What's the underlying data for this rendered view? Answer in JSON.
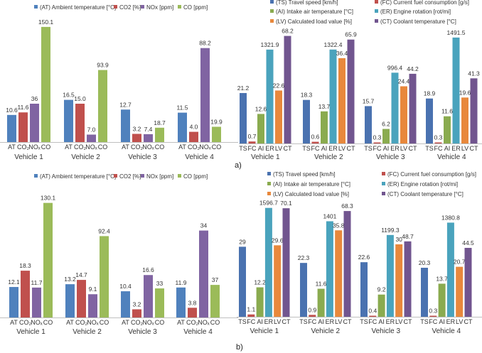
{
  "panel_labels": [
    "a)",
    "b)"
  ],
  "chart_data": [
    {
      "type": "bar",
      "panel": "a) left",
      "categories": [
        "Vehicle 1",
        "Vehicle 2",
        "Vehicle 3",
        "Vehicle 4"
      ],
      "bar_labels": [
        "AT",
        "CO₂",
        "NOₓ",
        "CO"
      ],
      "legend_position": "top",
      "series": [
        {
          "name": "(AT) Ambient temperature [°C]",
          "color": "#4f81bd",
          "values": [
            10.6,
            16.5,
            12.7,
            11.5
          ],
          "labels": [
            "10.6",
            "16.5",
            "12.7",
            "11.5"
          ]
        },
        {
          "name": "CO2 [%]",
          "color": "#c0504d",
          "values": [
            11.6,
            15.0,
            3.2,
            4.0
          ],
          "labels": [
            "11.6",
            "15.0",
            "3.2",
            "4.0"
          ]
        },
        {
          "name": "NOx [ppm]",
          "color": "#8064a2",
          "values": [
            36,
            7.0,
            7.4,
            88.2
          ],
          "labels": [
            "36",
            "7.0",
            "7.4",
            "88.2"
          ]
        },
        {
          "name": "CO [ppm]",
          "color": "#9bbb59",
          "values": [
            150.1,
            93.9,
            18.7,
            19.9
          ],
          "labels": [
            "150.1",
            "93.9",
            "18.7",
            "19.9"
          ]
        }
      ]
    },
    {
      "type": "bar",
      "panel": "a) right",
      "categories": [
        "Vehicle 1",
        "Vehicle 2",
        "Vehicle 3",
        "Vehicle 4"
      ],
      "bar_labels": [
        "TS",
        "FC",
        "AI",
        "ER",
        "LV",
        "CT"
      ],
      "legend_position": "top",
      "series": [
        {
          "name": "(TS) Travel speed [km/h]",
          "color": "#4a72b0",
          "values": [
            21.2,
            18.3,
            15.7,
            18.9
          ],
          "labels": [
            "21.2",
            "18.3",
            "15.7",
            "18.9"
          ]
        },
        {
          "name": "(FC) Current fuel consumption [g/s]",
          "color": "#c0504d",
          "values": [
            0.7,
            0.6,
            0.3,
            0.3
          ],
          "labels": [
            "0.7",
            "0.6",
            "0.3",
            "0.3"
          ]
        },
        {
          "name": "(AI) Intake air temperature [°C]",
          "color": "#8aab4f",
          "values": [
            12.6,
            13.7,
            6.2,
            11.6
          ],
          "labels": [
            "12.6",
            "13.7",
            "6.2",
            "11.6"
          ]
        },
        {
          "name": "(ER) Engine rotation [rot/mi]",
          "color": "#4aa3bd",
          "values": [
            1321.9,
            1322.4,
            996.4,
            1491.5
          ],
          "labels": [
            "1321.9",
            "1322.4",
            "996.4",
            "1491.5"
          ]
        },
        {
          "name": "(LV) Calculated load value [%]",
          "color": "#e8883c",
          "values": [
            22.6,
            36.4,
            24.4,
            19.6
          ],
          "labels": [
            "22.6",
            "36.4",
            "24.4",
            "19.6"
          ]
        },
        {
          "name": "(CT) Coolant temperature [°C]",
          "color": "#71558f",
          "values": [
            68.2,
            65.9,
            44.2,
            41.3
          ],
          "labels": [
            "68.2",
            "65.9",
            "44.2",
            "41.3"
          ]
        }
      ]
    },
    {
      "type": "bar",
      "panel": "b) left",
      "categories": [
        "Vehicle 1",
        "Vehicle 2",
        "Vehicle 3",
        "Vehicle 4"
      ],
      "bar_labels": [
        "AT",
        "CO₂",
        "NOₓ",
        "CO"
      ],
      "legend_position": "top",
      "series": [
        {
          "name": "(AT) Ambient temperature [°C]",
          "color": "#4f81bd",
          "values": [
            12.1,
            13.2,
            10.4,
            11.9
          ],
          "labels": [
            "12.1",
            "13.2",
            "10.4",
            "11.9"
          ]
        },
        {
          "name": "CO2 [%]",
          "color": "#c0504d",
          "values": [
            18.3,
            14.7,
            3.2,
            3.8
          ],
          "labels": [
            "18.3",
            "14.7",
            "3.2",
            "3.8"
          ]
        },
        {
          "name": "NOx [ppm]",
          "color": "#8064a2",
          "values": [
            11.7,
            9.1,
            16.6,
            34
          ],
          "labels": [
            "11.7",
            "9.1",
            "16.6",
            "34"
          ]
        },
        {
          "name": "CO [ppm]",
          "color": "#9bbb59",
          "values": [
            130.1,
            92.4,
            33,
            37
          ],
          "labels": [
            "130.1",
            "92.4",
            "33",
            "37"
          ]
        }
      ]
    },
    {
      "type": "bar",
      "panel": "b) right",
      "categories": [
        "Vehicle 1",
        "Vehicle 2",
        "Vehicle 3",
        "Vehicle 4"
      ],
      "bar_labels": [
        "TS",
        "FC",
        "AI",
        "ER",
        "LV",
        "CT"
      ],
      "legend_position": "top",
      "series": [
        {
          "name": "(TS) Travel speed [km/h]",
          "color": "#4a72b0",
          "values": [
            29,
            22.3,
            22.6,
            20.3
          ],
          "labels": [
            "29",
            "22.3",
            "22.6",
            "20.3"
          ]
        },
        {
          "name": "(FC) Current fuel consumption [g/s]",
          "color": "#c0504d",
          "values": [
            1.1,
            0.9,
            0.4,
            0.3
          ],
          "labels": [
            "1.1",
            "0.9",
            "0.4",
            "0.3"
          ]
        },
        {
          "name": "(AI) Intake air temperature [°C]",
          "color": "#8aab4f",
          "values": [
            12.2,
            11.6,
            9.2,
            13.7
          ],
          "labels": [
            "12.2",
            "11.6",
            "9.2",
            "13.7"
          ]
        },
        {
          "name": "(ER) Engine rotation [rot/mi]",
          "color": "#4aa3bd",
          "values": [
            1596.7,
            1401,
            1199.3,
            1380.8
          ],
          "labels": [
            "1596.7",
            "1401",
            "1199.3",
            "1380.8"
          ]
        },
        {
          "name": "(LV) Calculated load value [%]",
          "color": "#e8883c",
          "values": [
            29.6,
            35.8,
            30,
            20.7
          ],
          "labels": [
            "29.6",
            "35.8",
            "30",
            "20.7"
          ]
        },
        {
          "name": "(CT) Coolant temperature [°C]",
          "color": "#71558f",
          "values": [
            70.1,
            68.3,
            48.7,
            44.5
          ],
          "labels": [
            "70.1",
            "68.3",
            "48.7",
            "44.5"
          ]
        }
      ]
    }
  ]
}
